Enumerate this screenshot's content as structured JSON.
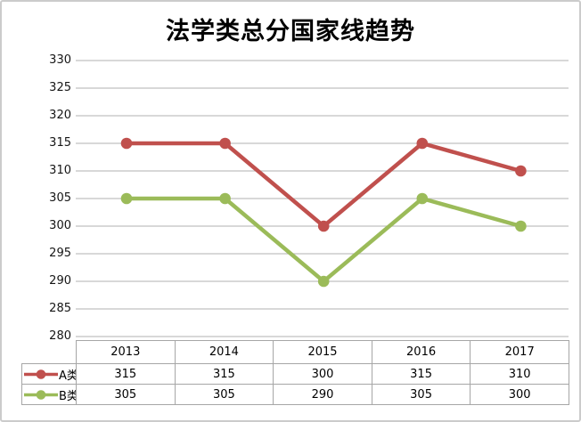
{
  "chart_data": {
    "type": "line",
    "title": "法学类总分国家线趋势",
    "categories": [
      "2013",
      "2014",
      "2015",
      "2016",
      "2017"
    ],
    "series": [
      {
        "name": "A类",
        "color": "#C0504D",
        "values": [
          315,
          315,
          300,
          315,
          310
        ]
      },
      {
        "name": "B类",
        "color": "#9BBB59",
        "values": [
          305,
          305,
          290,
          305,
          300
        ]
      }
    ],
    "ylim": [
      280,
      330
    ],
    "ytick_step": 5,
    "ytick_labels": [
      "330",
      "325",
      "320",
      "315",
      "310",
      "305",
      "300",
      "295",
      "290",
      "285",
      "280"
    ],
    "grid": true,
    "legend_position": "data-table-left",
    "data_table_shown": true
  },
  "colors": {
    "gridline": "#c0c0c0",
    "table_border": "#a6a6a6",
    "frame_border": "#cbcbcb",
    "title_text": "#000000",
    "axis_text": "#151515"
  }
}
